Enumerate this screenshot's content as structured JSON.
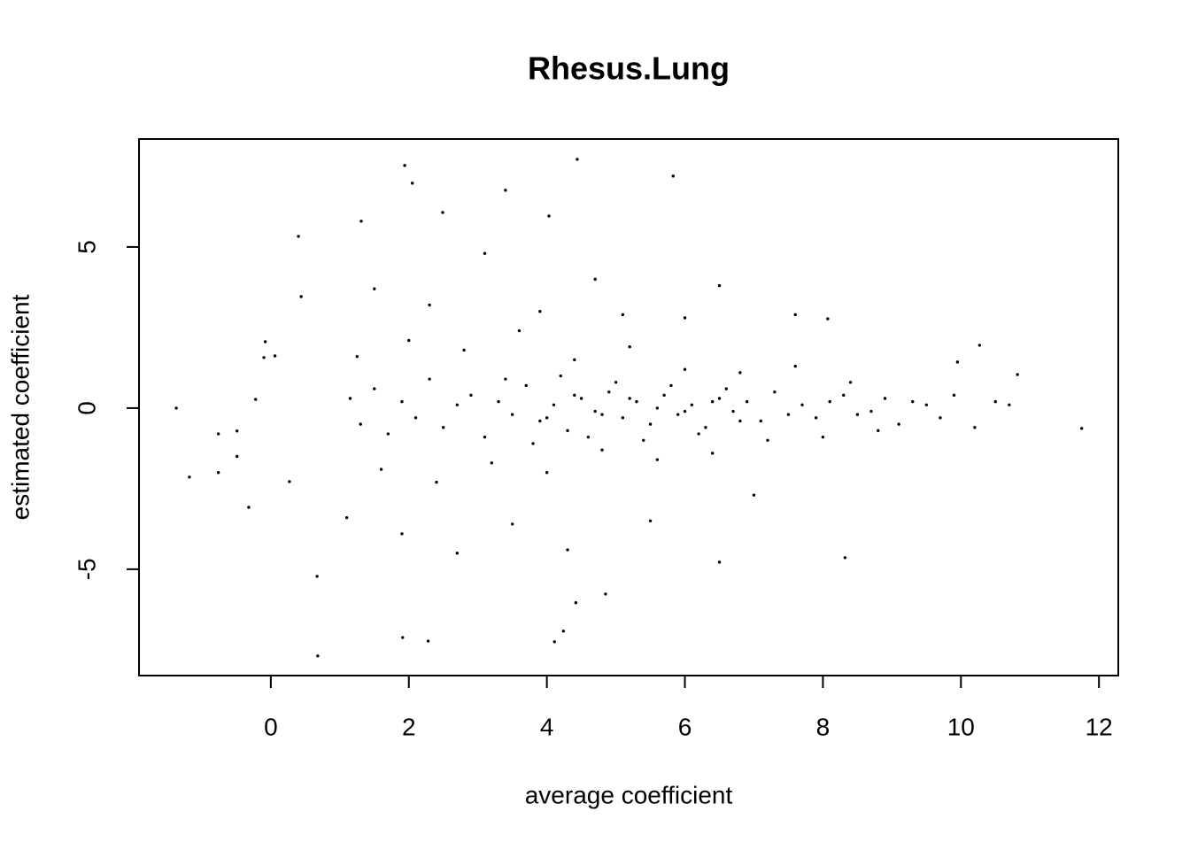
{
  "chart_data": {
    "type": "scatter",
    "title": "Rhesus.Lung",
    "x_label": "average coefficient",
    "y_label": "estimated coefficient",
    "color": "#000000",
    "xlim": [
      -1.91,
      12.28
    ],
    "ylim": [
      -8.3,
      8.35
    ],
    "xticks": [
      0,
      2,
      4,
      6,
      8,
      10,
      12
    ],
    "yticks": [
      -5,
      0,
      5
    ],
    "x": [
      -1.37,
      -1.18,
      -0.76,
      -0.76,
      -0.49,
      -0.49,
      -0.32,
      -0.22,
      -0.08,
      -0.1,
      0.06,
      0.27,
      0.4,
      0.44,
      0.68,
      0.67,
      1.94,
      1.91,
      2.05,
      2.28,
      4.44,
      5.83,
      4.11,
      4.24,
      4.42,
      8.32,
      6.5,
      11.75,
      10.82,
      10.27,
      9.95,
      8.07,
      2.49,
      3.4,
      4.03,
      1.31,
      4.85,
      1.15,
      1.3,
      1.5,
      1.7,
      1.9,
      2.1,
      2.3,
      2.5,
      2.7,
      2.9,
      3.1,
      3.3,
      3.5,
      3.7,
      3.9,
      4.1,
      4.3,
      4.5,
      4.7,
      4.9,
      5.1,
      5.3,
      5.5,
      5.7,
      5.9,
      6.1,
      6.3,
      6.5,
      6.7,
      6.9,
      7.1,
      7.3,
      7.5,
      7.7,
      7.9,
      8.1,
      8.3,
      8.5,
      8.7,
      8.9,
      9.1,
      9.3,
      9.5,
      9.7,
      9.9,
      10.2,
      10.5,
      10.7,
      1.25,
      1.6,
      2.0,
      2.4,
      2.8,
      3.2,
      3.6,
      4.0,
      4.4,
      4.8,
      5.2,
      5.6,
      6.0,
      6.4,
      6.8,
      7.2,
      7.6,
      8.0,
      8.4,
      8.8,
      1.1,
      1.5,
      1.9,
      2.3,
      2.7,
      3.1,
      3.5,
      3.9,
      4.3,
      4.7,
      5.1,
      5.5,
      6.0,
      6.5,
      7.0,
      7.6,
      3.4,
      3.8,
      4.2,
      4.6,
      5.0,
      5.4,
      5.8,
      6.2,
      6.6,
      4.0,
      4.4,
      4.8,
      5.2,
      5.6,
      6.0,
      6.4,
      6.8
    ],
    "y": [
      0,
      -2.14,
      -0.8,
      -2.0,
      -0.71,
      -1.5,
      -3.08,
      0.27,
      2.06,
      1.57,
      1.62,
      -2.28,
      5.33,
      3.46,
      -7.69,
      -5.22,
      7.53,
      -7.12,
      6.98,
      -7.23,
      7.72,
      7.2,
      -7.25,
      -6.92,
      -6.04,
      -4.64,
      -4.78,
      -0.63,
      1.04,
      1.95,
      1.43,
      2.77,
      6.07,
      6.76,
      5.96,
      5.8,
      -5.77,
      0.3,
      -0.5,
      0.6,
      -0.8,
      0.2,
      -0.3,
      0.9,
      -0.6,
      0.1,
      0.4,
      -0.9,
      0.2,
      -0.2,
      0.7,
      -0.4,
      0.1,
      -0.7,
      0.3,
      -0.1,
      0.5,
      -0.3,
      0.2,
      -0.5,
      0.4,
      -0.2,
      0.1,
      -0.6,
      0.3,
      -0.1,
      0.2,
      -0.4,
      0.5,
      -0.2,
      0.1,
      -0.3,
      0.2,
      0.4,
      -0.2,
      -0.1,
      0.3,
      -0.5,
      0.2,
      0.1,
      -0.3,
      0.4,
      -0.6,
      0.2,
      0.1,
      1.6,
      -1.9,
      2.1,
      -2.3,
      1.8,
      -1.7,
      2.4,
      -2.0,
      1.5,
      -1.3,
      1.9,
      -1.6,
      1.2,
      -1.4,
      1.1,
      -1.0,
      1.3,
      -0.9,
      0.8,
      -0.7,
      -3.4,
      3.7,
      -3.9,
      3.2,
      -4.5,
      4.8,
      -3.6,
      3.0,
      -4.4,
      4.0,
      2.9,
      -3.5,
      2.8,
      3.8,
      -2.7,
      2.9,
      0.9,
      -1.1,
      1.0,
      -0.9,
      0.8,
      -1.0,
      0.7,
      -0.8,
      0.6,
      -0.3,
      0.4,
      -0.2,
      0.3,
      0.0,
      -0.1,
      0.2,
      -0.4
    ]
  }
}
